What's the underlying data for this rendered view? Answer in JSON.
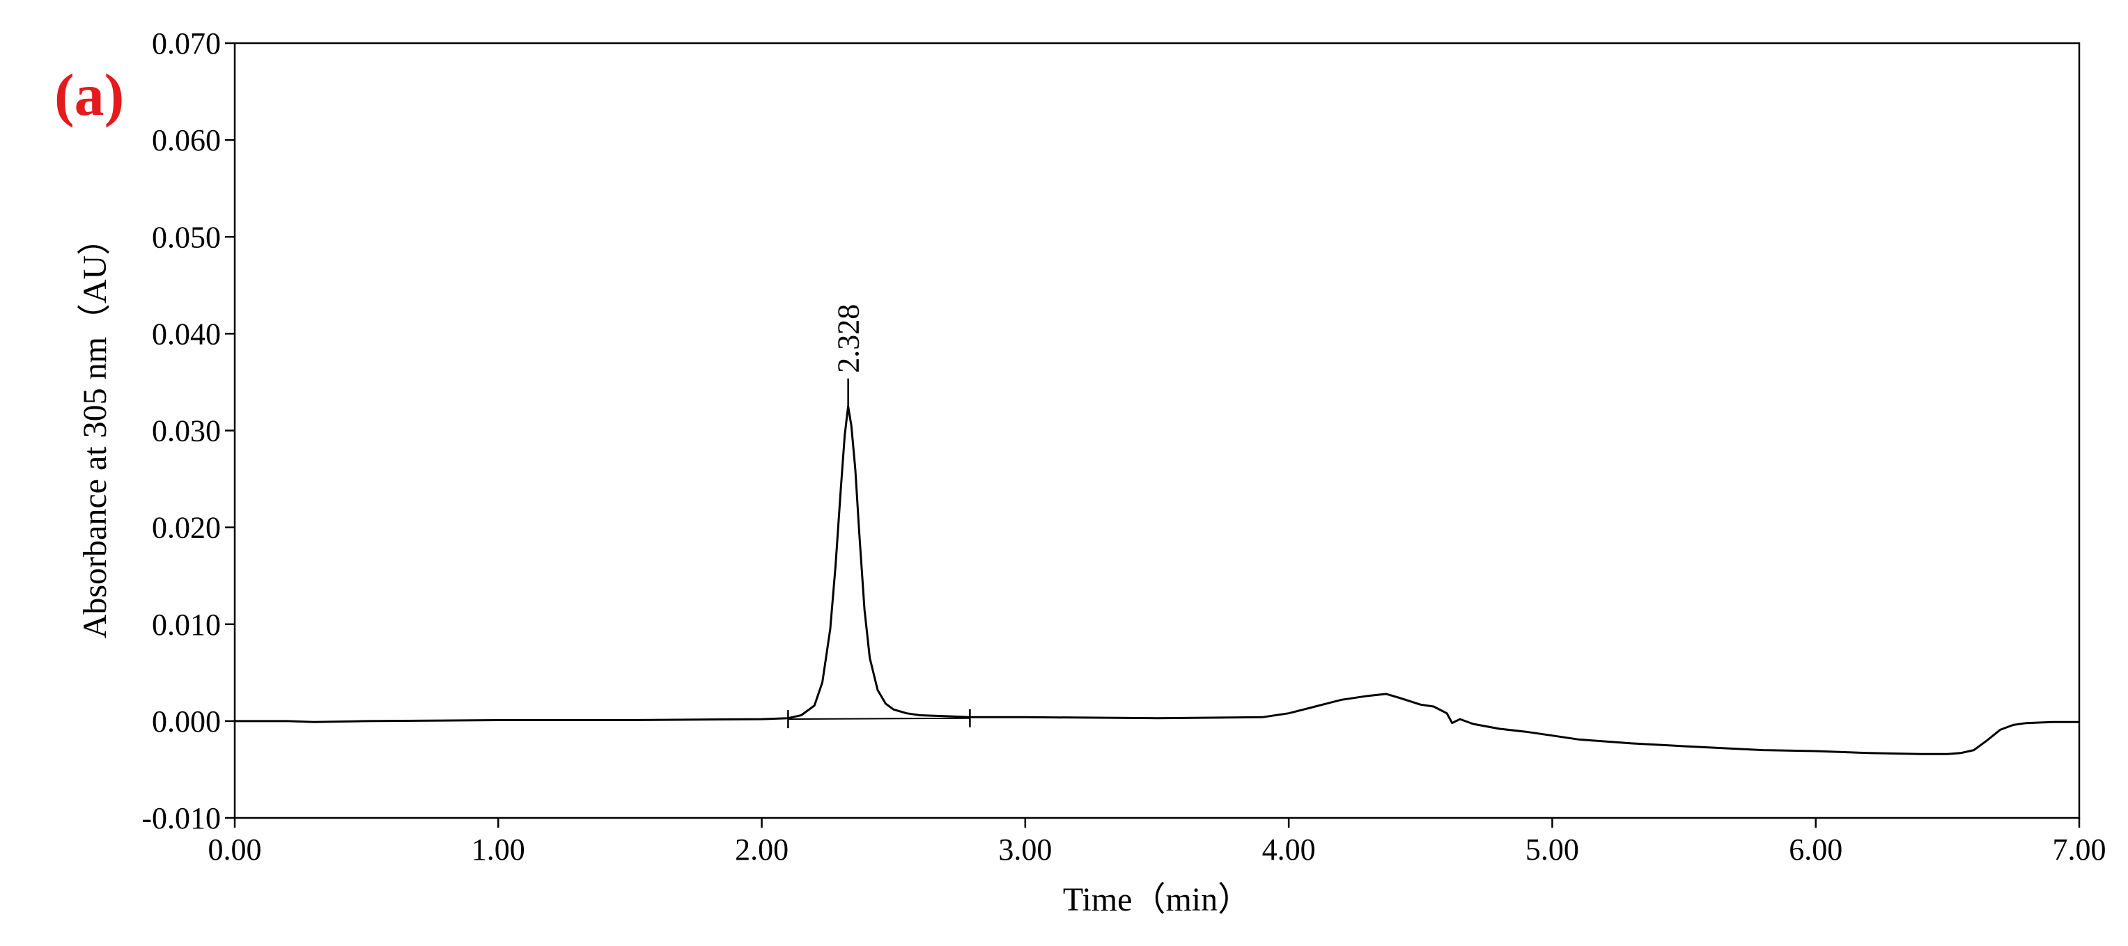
{
  "panel_label": "(a)",
  "colors": {
    "panel_label": "#e41a1c",
    "trace": "#000000",
    "axis": "#000000"
  },
  "chart_data": {
    "type": "line",
    "xlabel": "Time（min）",
    "ylabel": "Absorbance at 305 nm（AU）",
    "xlim": [
      0,
      7
    ],
    "ylim": [
      -0.01,
      0.07
    ],
    "x_ticks": [
      0,
      1,
      2,
      3,
      4,
      5,
      6,
      7
    ],
    "x_tick_labels": [
      "0.00",
      "1.00",
      "2.00",
      "3.00",
      "4.00",
      "5.00",
      "6.00",
      "7.00"
    ],
    "y_ticks": [
      -0.01,
      0,
      0.01,
      0.02,
      0.03,
      0.04,
      0.05,
      0.06,
      0.07
    ],
    "y_tick_labels": [
      "-0.010",
      "0.000",
      "0.010",
      "0.020",
      "0.030",
      "0.040",
      "0.050",
      "0.060",
      "0.070"
    ],
    "grid": false,
    "peak": {
      "label": "2.328",
      "x": 2.328,
      "y": 0.0325
    },
    "integration_markers": [
      2.1,
      2.79
    ],
    "baseline": {
      "x": [
        2.1,
        2.79
      ],
      "y": [
        0.0002,
        0.0003
      ]
    },
    "series": [
      {
        "x": [
          0,
          0.2,
          0.3,
          0.5,
          1.0,
          1.5,
          2.0,
          2.1,
          2.15,
          2.2,
          2.23,
          2.26,
          2.28,
          2.3,
          2.315,
          2.328,
          2.34,
          2.355,
          2.37,
          2.39,
          2.41,
          2.44,
          2.47,
          2.5,
          2.55,
          2.6,
          2.7,
          2.79,
          3.0,
          3.5,
          3.9,
          4.0,
          4.1,
          4.2,
          4.3,
          4.37,
          4.42,
          4.5,
          4.55,
          4.6,
          4.62,
          4.65,
          4.7,
          4.8,
          4.9,
          5.0,
          5.1,
          5.3,
          5.5,
          5.8,
          6.0,
          6.2,
          6.4,
          6.5,
          6.55,
          6.6,
          6.65,
          6.7,
          6.75,
          6.8,
          6.9,
          7.0
        ],
        "y": [
          0.0,
          0.0,
          -0.0001,
          0.0,
          0.0001,
          0.0001,
          0.0002,
          0.0003,
          0.0006,
          0.0016,
          0.004,
          0.0095,
          0.016,
          0.024,
          0.0295,
          0.0325,
          0.0305,
          0.026,
          0.0195,
          0.0115,
          0.0065,
          0.0032,
          0.0018,
          0.0012,
          0.0008,
          0.0006,
          0.0005,
          0.0004,
          0.0004,
          0.0003,
          0.0004,
          0.0008,
          0.0015,
          0.0022,
          0.0026,
          0.0028,
          0.0024,
          0.0017,
          0.0015,
          0.0008,
          -0.0002,
          0.0002,
          -0.0003,
          -0.0008,
          -0.0011,
          -0.0015,
          -0.0019,
          -0.0023,
          -0.0026,
          -0.003,
          -0.0031,
          -0.0033,
          -0.0034,
          -0.0034,
          -0.0033,
          -0.003,
          -0.002,
          -0.0009,
          -0.0004,
          -0.0002,
          -0.0001,
          -0.0001
        ]
      }
    ]
  }
}
